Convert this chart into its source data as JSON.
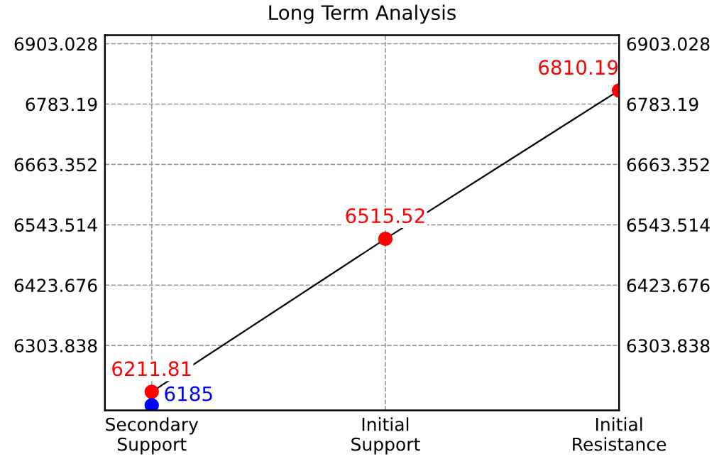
{
  "chart_data": {
    "type": "line",
    "title": "Long Term Analysis",
    "categories": [
      "Secondary\nSupport",
      "Initial\nSupport",
      "Initial\nResistance"
    ],
    "series": [
      {
        "color": "#000000",
        "marker": "none",
        "values": [
          6211.81,
          6515.52,
          6810.19
        ]
      },
      {
        "type": "scatter",
        "marker": "circle",
        "color": "#ff0000",
        "values": [
          6211.81,
          6515.52,
          6810.19
        ],
        "value_labels": [
          "6211.81",
          "6515.52",
          "6810.19"
        ]
      },
      {
        "type": "scatter",
        "marker": "circle",
        "color": "#0000ff",
        "values": [
          6185,
          null,
          null
        ],
        "value_labels": [
          "6185",
          null,
          null
        ]
      }
    ],
    "ylim": [
      6175,
      6920
    ],
    "yticks": [
      6303.838,
      6423.676,
      6543.514,
      6663.352,
      6783.19,
      6903.028
    ],
    "y2lim": [
      6175,
      6920
    ],
    "y2ticks": [
      6303.838,
      6423.676,
      6543.514,
      6663.352,
      6783.19,
      6903.028
    ],
    "grid": true
  }
}
